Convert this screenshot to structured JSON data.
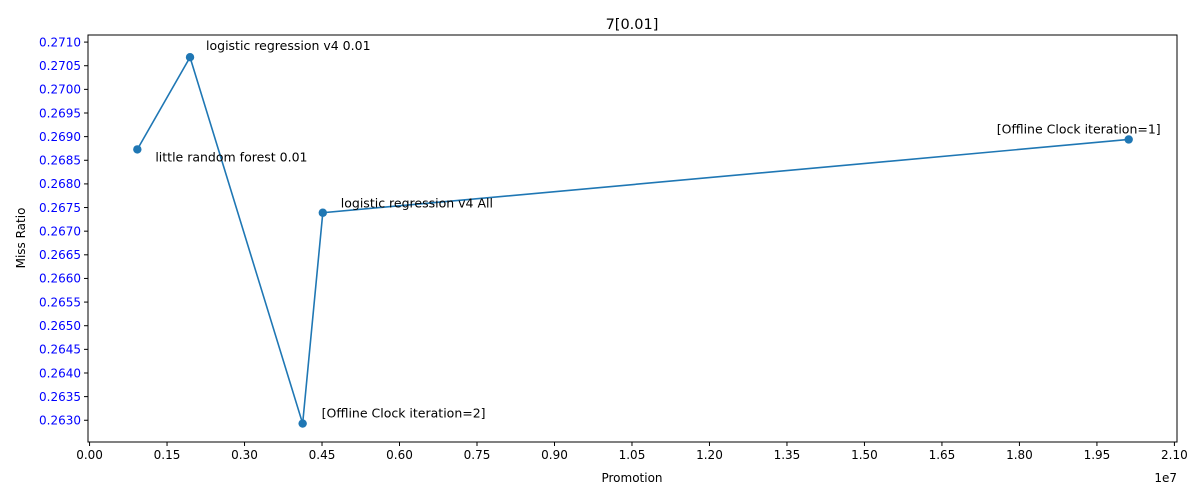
{
  "chart_data": {
    "type": "line",
    "title": "7[0.01]",
    "xlabel": "Promotion",
    "ylabel": "Miss Ratio",
    "x_offset_label": "1e7",
    "xlim": [
      -0.003,
      2.105
    ],
    "ylim": [
      0.26254,
      0.27115
    ],
    "xticks": [
      "0.00",
      "0.15",
      "0.30",
      "0.45",
      "0.60",
      "0.75",
      "0.90",
      "1.05",
      "1.20",
      "1.35",
      "1.50",
      "1.65",
      "1.80",
      "1.95",
      "2.10"
    ],
    "yticks": [
      "0.2630",
      "0.2635",
      "0.2640",
      "0.2645",
      "0.2650",
      "0.2655",
      "0.2660",
      "0.2665",
      "0.2670",
      "0.2675",
      "0.2680",
      "0.2685",
      "0.2690",
      "0.2695",
      "0.2700",
      "0.2705",
      "0.2710"
    ],
    "series_color": "#1f77b4",
    "ytick_color": "#0000ff",
    "points": [
      {
        "x": 0.0925,
        "y": 0.26873,
        "label": "little random forest 0.01"
      },
      {
        "x": 0.1945,
        "y": 0.27068,
        "label": "logistic regression v4 0.01"
      },
      {
        "x": 0.4125,
        "y": 0.26293,
        "label": "[Offline Clock iteration=2]"
      },
      {
        "x": 0.4515,
        "y": 0.26739,
        "label": "logistic regression v4 All"
      },
      {
        "x": 2.0115,
        "y": 0.26894,
        "label": "[Offline Clock iteration=1]"
      }
    ]
  }
}
